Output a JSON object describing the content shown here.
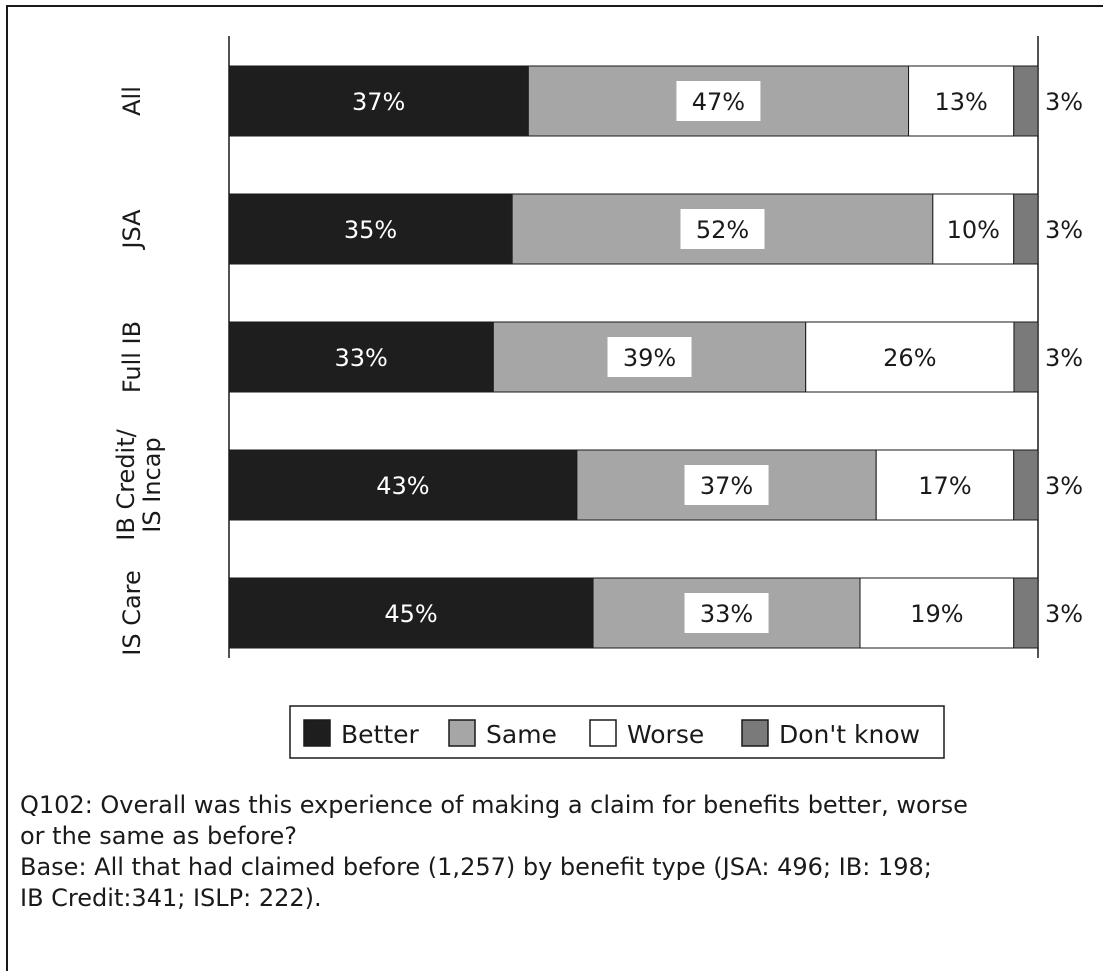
{
  "chart_data": {
    "type": "bar",
    "orientation": "horizontal",
    "stacked": true,
    "categories": [
      "All",
      "JSA",
      "Full IB",
      "IB Credit/ IS Incap",
      "IS Care"
    ],
    "series": [
      {
        "name": "Better",
        "color": "#1e1e1e",
        "values": [
          37,
          35,
          33,
          43,
          45
        ],
        "labels": [
          "37%",
          "35%",
          "33%",
          "43%",
          "45%"
        ]
      },
      {
        "name": "Same",
        "color": "#a6a6a6",
        "values": [
          47,
          52,
          39,
          37,
          33
        ],
        "labels": [
          "47%",
          "52%",
          "39%",
          "37%",
          "33%"
        ]
      },
      {
        "name": "Worse",
        "color": "#ffffff",
        "values": [
          13,
          10,
          26,
          17,
          19
        ],
        "labels": [
          "13%",
          "10%",
          "26%",
          "17%",
          "19%"
        ]
      },
      {
        "name": "Don't know",
        "color": "#7a7a7a",
        "values": [
          3,
          3,
          3,
          3,
          3
        ],
        "labels": [
          "3%",
          "3%",
          "3%",
          "3%",
          "3%"
        ]
      }
    ],
    "xlim": [
      0,
      100
    ],
    "legend_position": "bottom",
    "grid": false
  },
  "caption": {
    "question_line1": "Q102: Overall was this experience of making a claim for benefits better, worse",
    "question_line2": "or the same as before?",
    "base_line1": "Base: All that had claimed before (1,257) by benefit type (JSA: 496; IB: 198;",
    "base_line2": "IB Credit:341; ISLP: 222)."
  }
}
